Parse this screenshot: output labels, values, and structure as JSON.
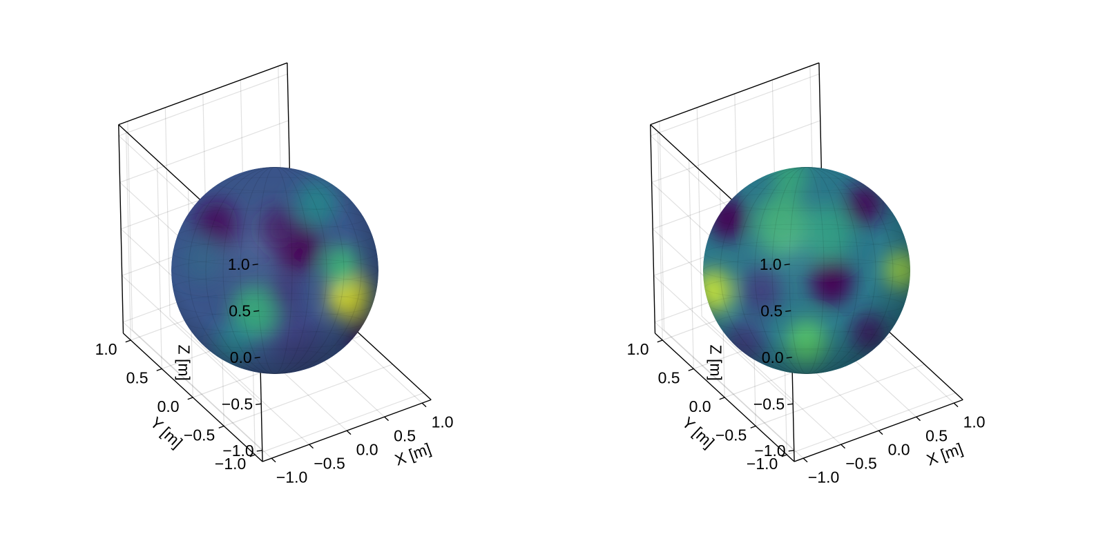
{
  "chart_data": [
    {
      "type": "surface",
      "xlabel": "X [m]",
      "ylabel": "Y [m]",
      "zlabel": "Z [m]",
      "xlim": [
        -1.0,
        1.0
      ],
      "ylim": [
        -1.0,
        1.0
      ],
      "zlim": [
        -1.0,
        1.0
      ],
      "xticks": [
        "−1.0",
        "−0.5",
        "0.0",
        "0.5",
        "1.0"
      ],
      "yticks": [
        "−1.0",
        "−0.5",
        "0.0",
        "0.5",
        "1.0"
      ],
      "zticks": [
        "−1.0",
        "−0.5",
        "0.0",
        "0.5",
        "1.0"
      ],
      "grid": true,
      "surface": "unit sphere",
      "colormap": "viridis",
      "colormap_stops": [
        "#440154",
        "#3b528b",
        "#21918c",
        "#5ec962",
        "#fde725"
      ]
    },
    {
      "type": "surface",
      "xlabel": "X [m]",
      "ylabel": "Y [m]",
      "zlabel": "Z [m]",
      "xlim": [
        -1.0,
        1.0
      ],
      "ylim": [
        -1.0,
        1.0
      ],
      "zlim": [
        -1.0,
        1.0
      ],
      "xticks": [
        "−1.0",
        "−0.5",
        "0.0",
        "0.5",
        "1.0"
      ],
      "yticks": [
        "−1.0",
        "−0.5",
        "0.0",
        "0.5",
        "1.0"
      ],
      "zticks": [
        "−1.0",
        "−0.5",
        "0.0",
        "0.5",
        "1.0"
      ],
      "grid": true,
      "surface": "unit sphere",
      "colormap": "viridis",
      "colormap_stops": [
        "#440154",
        "#3b528b",
        "#21918c",
        "#5ec962",
        "#fde725"
      ]
    }
  ]
}
